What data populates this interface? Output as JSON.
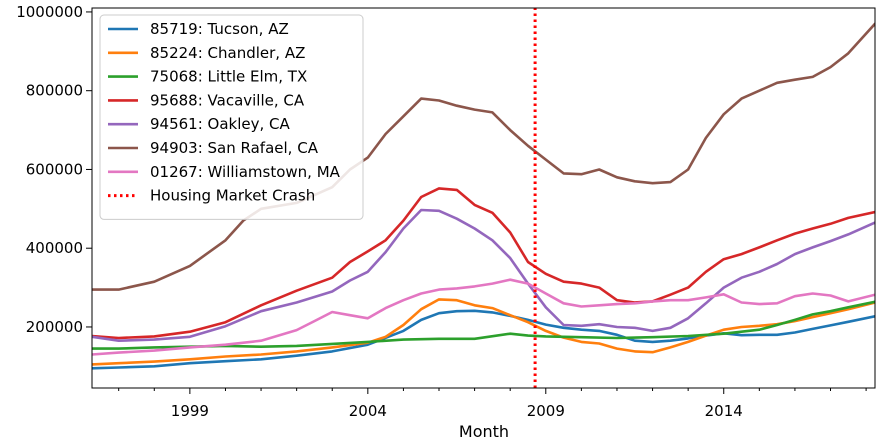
{
  "chart_data": {
    "type": "line",
    "title": "",
    "xlabel": "Month",
    "ylabel": "",
    "xlim": [
      1996.25,
      2018.25
    ],
    "ylim": [
      45000,
      1010000
    ],
    "x_ticks": [
      1999,
      2004,
      2009,
      2014
    ],
    "y_ticks": [
      200000,
      400000,
      600000,
      800000,
      1000000
    ],
    "legend_position": "top-left",
    "grid": false,
    "series": [
      {
        "name": "85719: Tucson, AZ",
        "color": "#1f77b4",
        "x": [
          1996.25,
          1997,
          1998,
          1999,
          2000,
          2001,
          2002,
          2003,
          2004,
          2005,
          2005.5,
          2006,
          2006.5,
          2007,
          2007.5,
          2008,
          2008.5,
          2009,
          2009.5,
          2010,
          2010.5,
          2011,
          2011.5,
          2012,
          2012.5,
          2013,
          2013.5,
          2014,
          2014.5,
          2015,
          2015.5,
          2016,
          2016.5,
          2017,
          2017.5,
          2018.25
        ],
        "y": [
          95000,
          97000,
          100000,
          108000,
          113000,
          118000,
          127000,
          138000,
          155000,
          190000,
          218000,
          235000,
          240000,
          241000,
          237000,
          228000,
          218000,
          206000,
          198000,
          193000,
          190000,
          180000,
          165000,
          162000,
          165000,
          171000,
          178000,
          184000,
          179000,
          180000,
          180000,
          186000,
          195000,
          204000,
          213000,
          227000
        ]
      },
      {
        "name": "85224: Chandler, AZ",
        "color": "#ff7f0e",
        "x": [
          1996.25,
          1997,
          1998,
          1999,
          2000,
          2001,
          2002,
          2003,
          2004,
          2004.5,
          2005,
          2005.5,
          2006,
          2006.5,
          2007,
          2007.5,
          2008,
          2008.5,
          2009,
          2009.5,
          2010,
          2010.5,
          2011,
          2011.5,
          2012,
          2012.5,
          2013,
          2013.5,
          2014,
          2014.5,
          2015,
          2015.5,
          2016,
          2016.5,
          2017,
          2017.5,
          2018.25
        ],
        "y": [
          105000,
          108000,
          112000,
          118000,
          125000,
          130000,
          138000,
          148000,
          160000,
          175000,
          205000,
          245000,
          270000,
          268000,
          255000,
          248000,
          230000,
          212000,
          190000,
          173000,
          162000,
          158000,
          145000,
          138000,
          136000,
          148000,
          162000,
          178000,
          193000,
          200000,
          203000,
          207000,
          215000,
          225000,
          235000,
          245000,
          262000
        ]
      },
      {
        "name": "75068: Little Elm, TX",
        "color": "#2ca02c",
        "x": [
          1996.25,
          1997,
          1998,
          1999,
          2000,
          2001,
          2002,
          2003,
          2004,
          2005,
          2006,
          2007,
          2008,
          2008.5,
          2009,
          2010,
          2011,
          2012,
          2013,
          2014,
          2015,
          2015.5,
          2016,
          2016.5,
          2017,
          2017.5,
          2018.25
        ],
        "y": [
          145000,
          145000,
          148000,
          150000,
          152000,
          150000,
          152000,
          157000,
          162000,
          168000,
          170000,
          170000,
          183000,
          178000,
          176000,
          174000,
          172000,
          174000,
          177000,
          183000,
          193000,
          205000,
          218000,
          232000,
          240000,
          250000,
          264000
        ]
      },
      {
        "name": "95688: Vacaville, CA",
        "color": "#d62728",
        "x": [
          1996.25,
          1997,
          1998,
          1999,
          2000,
          2001,
          2002,
          2003,
          2003.5,
          2004,
          2004.5,
          2005,
          2005.5,
          2006,
          2006.5,
          2007,
          2007.5,
          2008,
          2008.5,
          2009,
          2009.5,
          2010,
          2010.5,
          2011,
          2011.5,
          2012,
          2012.5,
          2013,
          2013.5,
          2014,
          2014.5,
          2015,
          2015.5,
          2016,
          2016.5,
          2017,
          2017.5,
          2018.25
        ],
        "y": [
          177000,
          172000,
          176000,
          188000,
          212000,
          255000,
          292000,
          325000,
          365000,
          392000,
          420000,
          470000,
          530000,
          552000,
          548000,
          510000,
          490000,
          440000,
          365000,
          335000,
          315000,
          310000,
          300000,
          268000,
          262000,
          265000,
          282000,
          300000,
          340000,
          372000,
          385000,
          402000,
          420000,
          437000,
          450000,
          462000,
          477000,
          492000
        ]
      },
      {
        "name": "94561: Oakley, CA",
        "color": "#9467bd",
        "x": [
          1996.25,
          1997,
          1998,
          1999,
          2000,
          2001,
          2002,
          2003,
          2003.5,
          2004,
          2004.5,
          2005,
          2005.5,
          2006,
          2006.5,
          2007,
          2007.5,
          2008,
          2008.5,
          2009,
          2009.5,
          2010,
          2010.5,
          2011,
          2011.5,
          2012,
          2012.5,
          2013,
          2013.5,
          2014,
          2014.5,
          2015,
          2015.5,
          2016,
          2016.5,
          2017,
          2017.5,
          2018.25
        ],
        "y": [
          175000,
          165000,
          168000,
          175000,
          202000,
          240000,
          262000,
          290000,
          318000,
          340000,
          390000,
          450000,
          497000,
          495000,
          475000,
          450000,
          420000,
          375000,
          310000,
          250000,
          205000,
          203000,
          207000,
          200000,
          198000,
          190000,
          198000,
          222000,
          260000,
          300000,
          325000,
          340000,
          360000,
          385000,
          402000,
          418000,
          435000,
          465000
        ]
      },
      {
        "name": "94903: San Rafael, CA",
        "color": "#8c564b",
        "x": [
          1996.25,
          1997,
          1998,
          1999,
          2000,
          2000.5,
          2001,
          2002,
          2003,
          2003.5,
          2004,
          2004.5,
          2005,
          2005.5,
          2006,
          2006.5,
          2007,
          2007.5,
          2008,
          2008.5,
          2009,
          2009.5,
          2010,
          2010.5,
          2011,
          2011.5,
          2012,
          2012.5,
          2013,
          2013.5,
          2014,
          2014.5,
          2015,
          2015.5,
          2016,
          2016.5,
          2017,
          2017.5,
          2018.25
        ],
        "y": [
          295000,
          295000,
          315000,
          355000,
          420000,
          470000,
          500000,
          515000,
          555000,
          600000,
          630000,
          690000,
          735000,
          780000,
          775000,
          762000,
          752000,
          745000,
          700000,
          660000,
          625000,
          590000,
          588000,
          600000,
          580000,
          570000,
          565000,
          568000,
          600000,
          680000,
          740000,
          780000,
          800000,
          820000,
          828000,
          835000,
          860000,
          895000,
          970000
        ]
      },
      {
        "name": "01267: Williamstown, MA",
        "color": "#e377c2",
        "x": [
          1996.25,
          1997,
          1998,
          1999,
          2000,
          2001,
          2002,
          2002.5,
          2003,
          2003.5,
          2004,
          2004.5,
          2005,
          2005.5,
          2006,
          2006.5,
          2007,
          2007.5,
          2008,
          2008.5,
          2009,
          2009.5,
          2010,
          2010.5,
          2011,
          2011.5,
          2012,
          2012.5,
          2013,
          2013.5,
          2014,
          2014.5,
          2015,
          2015.5,
          2016,
          2016.5,
          2017,
          2017.5,
          2018.25
        ],
        "y": [
          130000,
          135000,
          140000,
          148000,
          155000,
          165000,
          192000,
          215000,
          238000,
          230000,
          222000,
          248000,
          268000,
          285000,
          295000,
          298000,
          303000,
          310000,
          320000,
          310000,
          285000,
          260000,
          252000,
          255000,
          258000,
          260000,
          265000,
          268000,
          268000,
          275000,
          283000,
          262000,
          258000,
          260000,
          278000,
          285000,
          280000,
          265000,
          282000
        ]
      },
      {
        "name": "Housing Market Crash",
        "color": "#ff0000",
        "style": "dotted",
        "x": [
          2008.7,
          2008.7
        ],
        "y": [
          45000,
          1010000
        ]
      }
    ]
  }
}
